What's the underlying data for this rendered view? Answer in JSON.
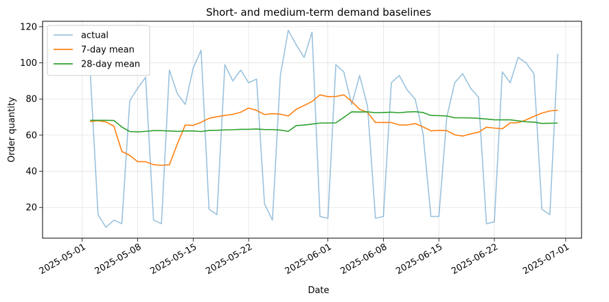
{
  "chart_data": {
    "type": "line",
    "title": "Short- and medium-term demand baselines",
    "xlabel": "Date",
    "ylabel": "Order quantity",
    "xlim": [
      "2025-04-26",
      "2025-07-03"
    ],
    "ylim": [
      3,
      123
    ],
    "grid": true,
    "legend_position": "top-left",
    "x_ticks": [
      "2025-05-01",
      "2025-05-08",
      "2025-05-15",
      "2025-05-22",
      "2025-06-01",
      "2025-06-08",
      "2025-06-15",
      "2025-06-22",
      "2025-07-01"
    ],
    "y_ticks": [
      20,
      40,
      60,
      80,
      100,
      120
    ],
    "x_start": "2025-05-02",
    "series": [
      {
        "name": "actual",
        "color": "#1f77b4",
        "opacity": 0.45,
        "values": [
          96,
          16,
          9,
          13,
          11,
          79,
          86,
          92,
          13,
          11,
          96,
          83,
          77,
          97,
          107,
          19,
          16,
          99,
          90,
          96,
          89,
          91,
          22,
          13,
          93,
          118,
          110,
          103,
          117,
          15,
          14,
          99,
          95,
          77,
          93,
          76,
          14,
          15,
          89,
          93,
          85,
          80,
          61,
          15,
          15,
          70,
          89,
          94,
          86,
          81,
          11,
          12,
          95,
          89,
          103,
          100,
          94,
          19,
          16,
          105
        ]
      },
      {
        "name": "7-day mean",
        "color": "#ff7f0e",
        "opacity": 1,
        "values": [
          67.5,
          68.0,
          67.3,
          65.0,
          51.0,
          48.8,
          45.3,
          45.3,
          43.7,
          43.3,
          43.6,
          55.1,
          65.6,
          65.4,
          67.1,
          69.3,
          70.2,
          70.9,
          71.5,
          72.7,
          75.0,
          73.7,
          71.4,
          71.9,
          71.6,
          70.6,
          74.3,
          76.4,
          78.6,
          82.3,
          81.3,
          81.4,
          82.3,
          78.7,
          74.3,
          72.6,
          67.0,
          67.0,
          67.0,
          65.7,
          65.6,
          66.4,
          64.6,
          62.4,
          62.6,
          62.5,
          60.2,
          59.5,
          60.7,
          61.6,
          64.4,
          63.9,
          63.5,
          66.8,
          66.9,
          68.4,
          70.4,
          72.2,
          73.4,
          73.8
        ]
      },
      {
        "name": "28-day mean",
        "color": "#2ca02c",
        "opacity": 1,
        "values": [
          68.2,
          68.2,
          68.2,
          68.1,
          64.5,
          62.0,
          61.8,
          62.1,
          62.5,
          62.5,
          62.3,
          62.1,
          62.3,
          62.3,
          62.0,
          62.6,
          62.7,
          62.9,
          63.0,
          63.2,
          63.2,
          63.4,
          63.1,
          63.1,
          62.8,
          62.1,
          65.3,
          65.6,
          66.1,
          66.7,
          66.7,
          66.8,
          69.8,
          72.9,
          72.8,
          72.9,
          72.4,
          72.5,
          72.7,
          72.4,
          72.8,
          73.0,
          72.5,
          70.9,
          70.8,
          70.6,
          69.6,
          69.6,
          69.5,
          69.3,
          68.9,
          68.5,
          68.5,
          68.5,
          67.9,
          67.4,
          67.2,
          66.5,
          66.6,
          66.7
        ]
      }
    ]
  }
}
